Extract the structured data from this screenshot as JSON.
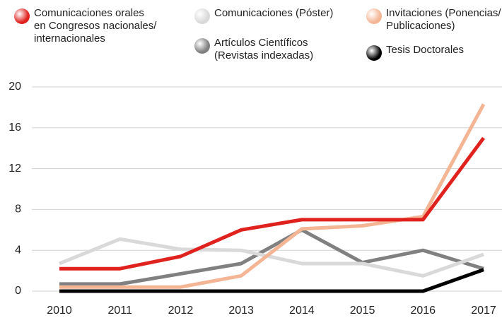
{
  "chart_data": {
    "type": "line",
    "x": [
      "2010",
      "2011",
      "2012",
      "2013",
      "2014",
      "2015",
      "2016",
      "2017"
    ],
    "series": [
      {
        "name": "Comunicaciones orales\nen Congresos nacionales/\ninternacionales",
        "color": "#e0221e",
        "values": [
          2.2,
          2.2,
          3.4,
          6,
          7,
          7,
          7,
          15
        ]
      },
      {
        "name": "Comunicaciones (Póster)",
        "color": "#d9d9d9",
        "values": [
          2.7,
          5.1,
          4.1,
          4,
          2.7,
          2.7,
          1.5,
          3.6
        ]
      },
      {
        "name": "Invitaciones (Ponencias/\nPublicaciones)",
        "color": "#f4b595",
        "values": [
          0.4,
          0.4,
          0.4,
          1.5,
          6.1,
          6.4,
          7.3,
          18.3
        ]
      },
      {
        "name": "Artículos Científicos\n(Revistas indexadas)",
        "color": "#808080",
        "values": [
          0.7,
          0.7,
          1.7,
          2.7,
          6,
          2.8,
          4,
          2.2
        ]
      },
      {
        "name": "Tesis Doctorales",
        "color": "#000000",
        "values": [
          0,
          0,
          0,
          0,
          0,
          0,
          0,
          2.1
        ]
      }
    ],
    "ylim": [
      0,
      20
    ],
    "yticks": [
      0,
      4,
      8,
      12,
      16,
      20
    ],
    "grid": true
  }
}
